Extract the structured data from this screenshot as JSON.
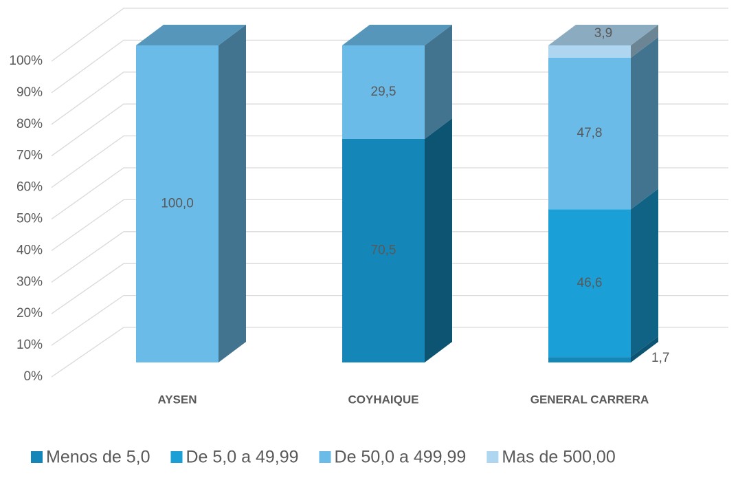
{
  "chart_data": {
    "type": "bar3d_stacked_percent",
    "categories": [
      "AYSEN",
      "COYHAIQUE",
      "GENERAL CARRERA"
    ],
    "series": [
      {
        "name": "Menos de 5,0",
        "color": "#1487b8",
        "values": [
          0,
          70.5,
          1.7
        ],
        "value_labels": [
          null,
          "70,5",
          "1,7"
        ]
      },
      {
        "name": "De 5,0 a 49,99",
        "color": "#1a9fd6",
        "values": [
          0,
          0,
          46.6
        ],
        "value_labels": [
          null,
          null,
          "46,6"
        ]
      },
      {
        "name": "De 50,0 a 499,99",
        "color": "#6bbbe8",
        "values": [
          100,
          29.5,
          47.8
        ],
        "value_labels": [
          "100,0",
          "29,5",
          "47,8"
        ]
      },
      {
        "name": "Mas de 500,00",
        "color": "#aed6f0",
        "values": [
          0,
          0,
          3.9
        ],
        "value_labels": [
          null,
          null,
          "3,9"
        ]
      }
    ],
    "ylim": [
      0,
      100
    ],
    "yticks": [
      {
        "value": 0,
        "label": "0%"
      },
      {
        "value": 10,
        "label": "10%"
      },
      {
        "value": 20,
        "label": "20%"
      },
      {
        "value": 30,
        "label": "30%"
      },
      {
        "value": 40,
        "label": "40%"
      },
      {
        "value": 50,
        "label": "50%"
      },
      {
        "value": 60,
        "label": "60%"
      },
      {
        "value": 70,
        "label": "70%"
      },
      {
        "value": 80,
        "label": "80%"
      },
      {
        "value": 90,
        "label": "90%"
      },
      {
        "value": 100,
        "label": "100%"
      }
    ],
    "grid": true,
    "legend": "bottom"
  }
}
